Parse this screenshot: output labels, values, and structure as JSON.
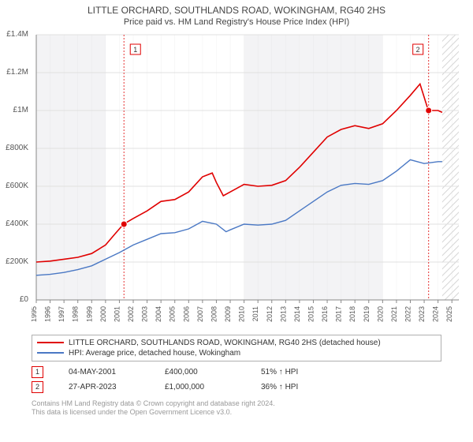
{
  "title_line1": "LITTLE ORCHARD, SOUTHLANDS ROAD, WOKINGHAM, RG40 2HS",
  "title_line2": "Price paid vs. HM Land Registry's House Price Index (HPI)",
  "chart": {
    "type": "line",
    "background_color": "#ffffff",
    "plot_shade_color": "#f3f3f5",
    "grid_color": "#e0e0e0",
    "axis_color": "#888888",
    "xlim": [
      1995,
      2025.5
    ],
    "ylim": [
      0,
      1400000
    ],
    "ytick_step": 200000,
    "xtick_step": 1,
    "ytick_labels": [
      "£0",
      "£200K",
      "£400K",
      "£600K",
      "£800K",
      "£1M",
      "£1.2M",
      "£1.4M"
    ],
    "xtick_labels": [
      "1995",
      "1996",
      "1997",
      "1998",
      "1999",
      "2000",
      "2001",
      "2002",
      "2003",
      "2004",
      "2005",
      "2006",
      "2007",
      "2008",
      "2009",
      "2010",
      "2011",
      "2012",
      "2013",
      "2014",
      "2015",
      "2016",
      "2017",
      "2018",
      "2019",
      "2020",
      "2021",
      "2022",
      "2023",
      "2024",
      "2025"
    ],
    "xtick_fontsize": 9,
    "ytick_fontsize": 10,
    "hatched_future_start": 2024.3,
    "series": [
      {
        "name": "property",
        "color": "#e00000",
        "width": 1.6,
        "data": [
          [
            1995,
            200000
          ],
          [
            1996,
            205000
          ],
          [
            1997,
            215000
          ],
          [
            1998,
            225000
          ],
          [
            1999,
            245000
          ],
          [
            2000,
            290000
          ],
          [
            2000.7,
            350000
          ],
          [
            2001.3,
            400000
          ],
          [
            2002,
            430000
          ],
          [
            2003,
            470000
          ],
          [
            2004,
            520000
          ],
          [
            2005,
            530000
          ],
          [
            2006,
            570000
          ],
          [
            2007,
            650000
          ],
          [
            2007.7,
            670000
          ],
          [
            2008,
            620000
          ],
          [
            2008.5,
            550000
          ],
          [
            2009,
            570000
          ],
          [
            2010,
            610000
          ],
          [
            2011,
            600000
          ],
          [
            2012,
            605000
          ],
          [
            2013,
            630000
          ],
          [
            2014,
            700000
          ],
          [
            2015,
            780000
          ],
          [
            2016,
            860000
          ],
          [
            2017,
            900000
          ],
          [
            2018,
            920000
          ],
          [
            2019,
            905000
          ],
          [
            2020,
            930000
          ],
          [
            2021,
            1000000
          ],
          [
            2022,
            1080000
          ],
          [
            2022.7,
            1140000
          ],
          [
            2023.3,
            1000000
          ],
          [
            2024,
            1000000
          ],
          [
            2024.3,
            990000
          ]
        ]
      },
      {
        "name": "hpi",
        "color": "#4a78c4",
        "width": 1.4,
        "data": [
          [
            1995,
            130000
          ],
          [
            1996,
            135000
          ],
          [
            1997,
            145000
          ],
          [
            1998,
            160000
          ],
          [
            1999,
            180000
          ],
          [
            2000,
            215000
          ],
          [
            2001,
            250000
          ],
          [
            2002,
            290000
          ],
          [
            2003,
            320000
          ],
          [
            2004,
            350000
          ],
          [
            2005,
            355000
          ],
          [
            2006,
            375000
          ],
          [
            2007,
            415000
          ],
          [
            2008,
            400000
          ],
          [
            2008.7,
            360000
          ],
          [
            2009,
            370000
          ],
          [
            2010,
            400000
          ],
          [
            2011,
            395000
          ],
          [
            2012,
            400000
          ],
          [
            2013,
            420000
          ],
          [
            2014,
            470000
          ],
          [
            2015,
            520000
          ],
          [
            2016,
            570000
          ],
          [
            2017,
            605000
          ],
          [
            2018,
            615000
          ],
          [
            2019,
            610000
          ],
          [
            2020,
            630000
          ],
          [
            2021,
            680000
          ],
          [
            2022,
            740000
          ],
          [
            2023,
            720000
          ],
          [
            2024,
            730000
          ],
          [
            2024.3,
            730000
          ]
        ]
      }
    ],
    "markers": [
      {
        "n": "1",
        "x": 2001.33,
        "y": 400000,
        "color": "#e00000",
        "vline_color": "#e00000"
      },
      {
        "n": "2",
        "x": 2023.32,
        "y": 1000000,
        "color": "#e00000",
        "vline_color": "#e00000"
      }
    ]
  },
  "legend": {
    "items": [
      {
        "color": "#e00000",
        "label": "LITTLE ORCHARD, SOUTHLANDS ROAD, WOKINGHAM, RG40 2HS (detached house)"
      },
      {
        "color": "#4a78c4",
        "label": "HPI: Average price, detached house, Wokingham"
      }
    ]
  },
  "marker_table": [
    {
      "n": "1",
      "border": "#e00000",
      "date": "04-MAY-2001",
      "price": "£400,000",
      "delta": "51% ↑ HPI"
    },
    {
      "n": "2",
      "border": "#e00000",
      "date": "27-APR-2023",
      "price": "£1,000,000",
      "delta": "36% ↑ HPI"
    }
  ],
  "footnote_line1": "Contains HM Land Registry data © Crown copyright and database right 2024.",
  "footnote_line2": "This data is licensed under the Open Government Licence v3.0."
}
